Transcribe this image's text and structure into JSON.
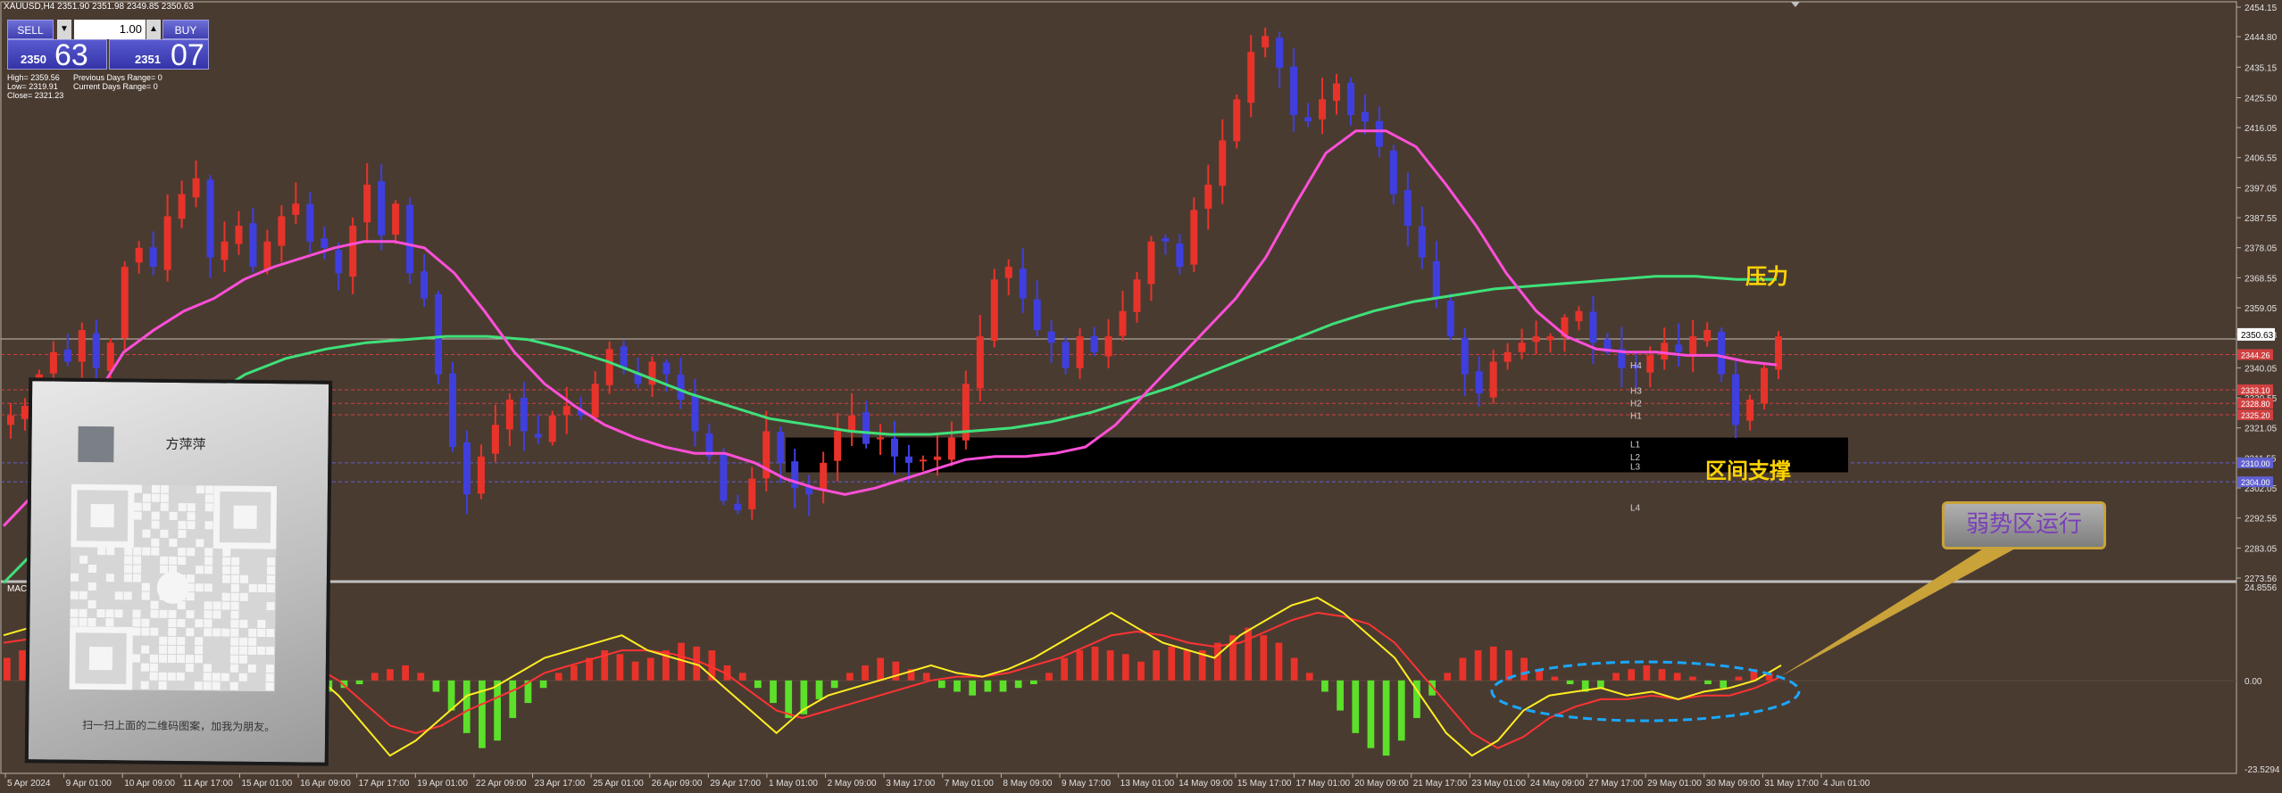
{
  "header": {
    "symbol_line": "XAUUSD,H4  2351.90 2351.98 2349.85 2350.63",
    "indicator_label": "MACD_"
  },
  "trade_panel": {
    "sell_label": "SELL",
    "buy_label": "BUY",
    "lot_value": "1.00",
    "sell_price_small": "2350",
    "sell_price_big": "63",
    "buy_price_small": "2351",
    "buy_price_big": "07"
  },
  "stats": {
    "high": "High= 2359.56",
    "low": "Low= 2319.91",
    "close": "Close= 2321.23",
    "prev_range": "Previous Days Range= 0",
    "curr_range": "Current Days Range= 0"
  },
  "qr_card": {
    "name": "方萍萍",
    "caption": "扫一扫上面的二维码图案，加我为朋友。",
    "icon": "wechat-icon"
  },
  "annotations": {
    "resistance": "压力",
    "support": "区间支撑",
    "weak_zone": "弱势区运行",
    "level_labels": [
      "H4",
      "H3",
      "H2",
      "H1",
      "L1",
      "L2",
      "L3",
      "L4"
    ]
  },
  "colors": {
    "background": "#4a3b31",
    "bull": "#e8332a",
    "bear": "#3f3fe0",
    "ma_fast": "#ff4fd8",
    "ma_slow": "#3fe07a",
    "macd_pos": "#e8332a",
    "macd_neg": "#5ce02a",
    "macd_line": "#ffee22",
    "signal_line": "#ff3333",
    "accent_yellow": "#ffd400"
  },
  "chart_data": {
    "type": "candlestick",
    "title": "XAUUSD,H4",
    "current_price": "2350.63",
    "ylim": [
      2273.56,
      2454.15
    ],
    "y_ticks": [
      "2454.15",
      "2444.80",
      "2435.15",
      "2425.50",
      "2416.05",
      "2406.55",
      "2397.05",
      "2387.55",
      "2378.05",
      "2368.55",
      "2359.05",
      "2350.63",
      "2340.05",
      "2330.55",
      "2321.05",
      "2311.55",
      "2302.05",
      "2292.55",
      "2283.05",
      "2273.56"
    ],
    "price_tags": {
      "2344.26": "#d04040",
      "2333.10": "#d04040",
      "2328.80": "#d04040",
      "2325.20": "#d04040",
      "2310.00": "#6060d0",
      "2304.00": "#6060d0"
    },
    "x_labels": [
      "5 Apr 2024",
      "9 Apr 01:00",
      "10 Apr 09:00",
      "11 Apr 17:00",
      "15 Apr 01:00",
      "16 Apr 09:00",
      "17 Apr 17:00",
      "19 Apr 01:00",
      "22 Apr 09:00",
      "23 Apr 17:00",
      "25 Apr 01:00",
      "26 Apr 09:00",
      "29 Apr 17:00",
      "1 May 01:00",
      "2 May 09:00",
      "3 May 17:00",
      "7 May 01:00",
      "8 May 09:00",
      "9 May 17:00",
      "13 May 01:00",
      "14 May 09:00",
      "15 May 17:00",
      "17 May 01:00",
      "20 May 09:00",
      "21 May 17:00",
      "23 May 01:00",
      "24 May 09:00",
      "27 May 17:00",
      "29 May 01:00",
      "30 May 09:00",
      "31 May 17:00",
      "4 Jun 01:00"
    ],
    "close_path": [
      2325,
      2328,
      2338,
      2345,
      2342,
      2352,
      2340,
      2348,
      2372,
      2378,
      2372,
      2388,
      2395,
      2400,
      2375,
      2380,
      2385,
      2372,
      2380,
      2388,
      2392,
      2380,
      2378,
      2370,
      2385,
      2398,
      2382,
      2392,
      2370,
      2362,
      2338,
      2315,
      2300,
      2312,
      2322,
      2330,
      2320,
      2318,
      2325,
      2328,
      2325,
      2335,
      2346,
      2340,
      2335,
      2342,
      2338,
      2330,
      2320,
      2312,
      2298,
      2295,
      2305,
      2320,
      2310,
      2302,
      2300,
      2310,
      2320,
      2325,
      2316,
      2318,
      2312,
      2310,
      2311,
      2312,
      2318,
      2335,
      2350,
      2368,
      2372,
      2362,
      2352,
      2348,
      2340,
      2350,
      2345,
      2350,
      2358,
      2368,
      2380,
      2380,
      2372,
      2390,
      2398,
      2412,
      2425,
      2440,
      2445,
      2435,
      2420,
      2418,
      2425,
      2430,
      2420,
      2418,
      2410,
      2395,
      2385,
      2375,
      2362,
      2350,
      2338,
      2332,
      2342,
      2345,
      2348,
      2350,
      2350,
      2356,
      2358,
      2348,
      2345,
      2340,
      2340,
      2344,
      2348,
      2345,
      2350,
      2352,
      2338,
      2322,
      2330,
      2340,
      2350
    ],
    "ma_fast": [
      2290,
      2300,
      2315,
      2330,
      2345,
      2352,
      2358,
      2362,
      2368,
      2372,
      2375,
      2378,
      2380,
      2380,
      2378,
      2370,
      2358,
      2345,
      2335,
      2328,
      2322,
      2318,
      2315,
      2313,
      2313,
      2310,
      2305,
      2302,
      2300,
      2302,
      2305,
      2308,
      2311,
      2312,
      2312,
      2313,
      2315,
      2322,
      2332,
      2342,
      2352,
      2362,
      2375,
      2392,
      2408,
      2415,
      2415,
      2410,
      2398,
      2385,
      2370,
      2358,
      2350,
      2346,
      2345,
      2345,
      2344,
      2344,
      2342,
      2341
    ],
    "ma_slow": [
      2272,
      2285,
      2298,
      2310,
      2320,
      2330,
      2338,
      2343,
      2346,
      2348,
      2349,
      2350,
      2350,
      2349,
      2346,
      2342,
      2337,
      2332,
      2328,
      2324,
      2322,
      2320,
      2319,
      2319,
      2320,
      2321,
      2323,
      2326,
      2330,
      2334,
      2339,
      2344,
      2349,
      2354,
      2358,
      2361,
      2363,
      2365,
      2366,
      2367,
      2368,
      2369,
      2369,
      2368,
      2368
    ],
    "support_zone": [
      2307,
      2318
    ],
    "levels": {
      "H4": 2341,
      "H3": 2333,
      "H2": 2329,
      "H1": 2325,
      "L1": 2316,
      "L2": 2312,
      "L3": 2309,
      "L4": 2296
    },
    "macd": {
      "ylim": [
        -23.5294,
        24.8556
      ],
      "y_ticks": [
        "24.8556",
        "0.00",
        "-23.5294"
      ],
      "histogram": [
        6,
        8,
        4,
        -3,
        -2,
        3,
        5,
        8,
        6,
        4,
        8,
        10,
        8,
        2,
        3,
        6,
        5,
        3,
        -2,
        -4,
        -6,
        -3,
        -2,
        -1,
        2,
        3,
        4,
        2,
        -3,
        -8,
        -14,
        -18,
        -16,
        -10,
        -6,
        -2,
        2,
        4,
        6,
        8,
        7,
        5,
        6,
        8,
        10,
        9,
        8,
        4,
        2,
        -2,
        -6,
        -10,
        -9,
        -5,
        -2,
        2,
        4,
        6,
        5,
        3,
        2,
        -2,
        -3,
        -4,
        -3,
        -3,
        -2,
        -1,
        2,
        6,
        8,
        9,
        8,
        7,
        5,
        8,
        9,
        8,
        8,
        10,
        12,
        14,
        12,
        10,
        6,
        2,
        -3,
        -8,
        -14,
        -18,
        -20,
        -16,
        -10,
        -4,
        2,
        6,
        8,
        9,
        8,
        6,
        3,
        1,
        -1,
        -3,
        -2,
        2,
        3,
        4,
        3,
        2,
        1,
        -1,
        -2,
        1,
        3,
        2
      ],
      "macd_line": [
        12,
        14,
        11,
        8,
        6,
        10,
        12,
        14,
        12,
        8,
        6,
        4,
        2,
        -4,
        -12,
        -20,
        -16,
        -10,
        -4,
        -2,
        2,
        6,
        8,
        10,
        12,
        8,
        6,
        4,
        -2,
        -8,
        -14,
        -8,
        -4,
        -2,
        0,
        2,
        4,
        2,
        1,
        3,
        6,
        10,
        14,
        18,
        14,
        10,
        8,
        6,
        12,
        16,
        20,
        22,
        18,
        12,
        6,
        -4,
        -14,
        -20,
        -16,
        -8,
        -4,
        -3,
        -2,
        -4,
        -3,
        -5,
        -3,
        -2,
        0,
        4
      ],
      "signal_line": [
        10,
        11,
        10,
        9,
        8,
        9,
        10,
        11,
        11,
        10,
        8,
        6,
        4,
        0,
        -6,
        -12,
        -14,
        -12,
        -8,
        -5,
        -2,
        2,
        4,
        6,
        8,
        8,
        7,
        5,
        2,
        -3,
        -8,
        -10,
        -8,
        -6,
        -4,
        -2,
        0,
        1,
        1,
        2,
        4,
        6,
        9,
        12,
        13,
        12,
        10,
        9,
        10,
        13,
        16,
        18,
        17,
        15,
        10,
        2,
        -6,
        -14,
        -18,
        -15,
        -10,
        -7,
        -5,
        -5,
        -4,
        -5,
        -4,
        -4,
        -2,
        1
      ]
    }
  }
}
